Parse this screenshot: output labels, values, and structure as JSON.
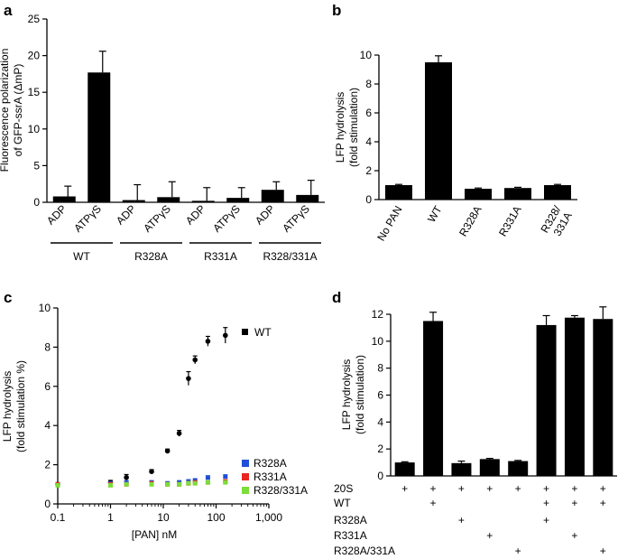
{
  "chart_data": [
    {
      "panel": "a",
      "type": "bar",
      "ylabel_line1": "Fluorescence polarization",
      "ylabel_line2": "of GFP-ssrA (ΔmP)",
      "ylim": [
        0,
        25
      ],
      "yticks": [
        0,
        5,
        10,
        15,
        20,
        25
      ],
      "categories": [
        "ADP",
        "ATPγS",
        "ADP",
        "ATPγS",
        "ADP",
        "ATPγS",
        "ADP",
        "ATPγS"
      ],
      "values": [
        0.8,
        17.7,
        0.3,
        0.7,
        0.2,
        0.6,
        1.7,
        1.0
      ],
      "errors": [
        1.4,
        2.9,
        2.1,
        2.1,
        1.8,
        1.4,
        1.1,
        2.0
      ],
      "groups": [
        "WT",
        "R328A",
        "R331A",
        "R328/331A"
      ]
    },
    {
      "panel": "b",
      "type": "bar",
      "ylabel_line1": "LFP hydrolysis",
      "ylabel_line2": "(fold stimulation)",
      "ylim": [
        0,
        10
      ],
      "yticks": [
        0,
        2,
        4,
        6,
        8,
        10
      ],
      "categories": [
        "No PAN",
        "WT",
        "R328A",
        "R331A",
        "R328/331A"
      ],
      "category_lines": [
        [
          "No PAN"
        ],
        [
          "WT"
        ],
        [
          "R328A"
        ],
        [
          "R331A"
        ],
        [
          "R328/",
          "331A"
        ]
      ],
      "values": [
        1.0,
        9.5,
        0.75,
        0.8,
        1.0
      ],
      "errors": [
        0.05,
        0.45,
        0.05,
        0.05,
        0.05
      ]
    },
    {
      "panel": "c",
      "type": "scatter",
      "xlabel": "[PAN] nM",
      "ylabel_line1": "LFP hydrolysis",
      "ylabel_line2": "(fold stimulation %)",
      "xscale": "log",
      "xlim": [
        0.1,
        1000
      ],
      "xticks": [
        "0.1",
        "1",
        "10",
        "100",
        "1,000"
      ],
      "ylim": [
        0,
        10
      ],
      "yticks": [
        0,
        2,
        4,
        6,
        8,
        10
      ],
      "series": [
        {
          "name": "WT",
          "color": "#000000",
          "x": [
            0.1,
            1,
            2,
            6,
            12,
            20,
            30,
            40,
            70,
            150
          ],
          "y": [
            1.0,
            1.1,
            1.35,
            1.65,
            2.7,
            3.6,
            6.4,
            7.35,
            8.3,
            8.6
          ],
          "err": [
            0.05,
            0.1,
            0.15,
            0.1,
            0.1,
            0.15,
            0.35,
            0.2,
            0.25,
            0.4
          ]
        },
        {
          "name": "R328A",
          "color": "#1f4fd8",
          "x": [
            0.1,
            1,
            2,
            6,
            12,
            20,
            30,
            40,
            70,
            150
          ],
          "y": [
            1.0,
            1.05,
            1.1,
            1.1,
            1.05,
            1.1,
            1.15,
            1.2,
            1.35,
            1.4
          ],
          "err": [
            0.05,
            0.05,
            0.05,
            0.05,
            0.05,
            0.05,
            0.05,
            0.1,
            0.1,
            0.1
          ]
        },
        {
          "name": "R331A",
          "color": "#e8261f",
          "x": [
            0.1,
            1,
            2,
            6,
            12,
            20,
            30,
            40,
            70,
            150
          ],
          "y": [
            1.0,
            1.0,
            1.0,
            1.05,
            1.0,
            1.0,
            1.05,
            1.1,
            1.1,
            1.15
          ],
          "err": [
            0.05,
            0.05,
            0.05,
            0.05,
            0.05,
            0.05,
            0.05,
            0.05,
            0.05,
            0.05
          ]
        },
        {
          "name": "R328/331A",
          "color": "#7cdc3a",
          "x": [
            0.1,
            1,
            2,
            6,
            12,
            20,
            30,
            40,
            70,
            150
          ],
          "y": [
            0.95,
            0.95,
            1.0,
            1.0,
            1.0,
            1.0,
            1.05,
            1.05,
            1.1,
            1.1
          ],
          "err": [
            0.05,
            0.05,
            0.05,
            0.05,
            0.05,
            0.05,
            0.05,
            0.05,
            0.05,
            0.05
          ]
        }
      ]
    },
    {
      "panel": "d",
      "type": "bar",
      "ylabel_line1": "LFP hydrolysis",
      "ylabel_line2": "(fold stimulation)",
      "ylim": [
        0,
        12
      ],
      "yticks": [
        0,
        2,
        4,
        6,
        8,
        10,
        12
      ],
      "values": [
        1.0,
        11.5,
        0.95,
        1.25,
        1.1,
        11.2,
        11.75,
        11.65
      ],
      "errors": [
        0.05,
        0.65,
        0.15,
        0.05,
        0.05,
        0.7,
        0.15,
        0.9
      ],
      "matrix_rows": [
        "20S",
        "WT",
        "R328A",
        "R331A",
        "R328A/331A"
      ],
      "matrix": [
        [
          "+",
          "+",
          "+",
          "+",
          "+",
          "+",
          "+",
          "+"
        ],
        [
          "",
          "+",
          "",
          "",
          "",
          "+",
          "+",
          "+"
        ],
        [
          "",
          "",
          "+",
          "",
          "",
          "+",
          "",
          ""
        ],
        [
          "",
          "",
          "",
          "+",
          "",
          "",
          "+",
          ""
        ],
        [
          "",
          "",
          "",
          "",
          "+",
          "",
          "",
          "+"
        ]
      ]
    }
  ]
}
